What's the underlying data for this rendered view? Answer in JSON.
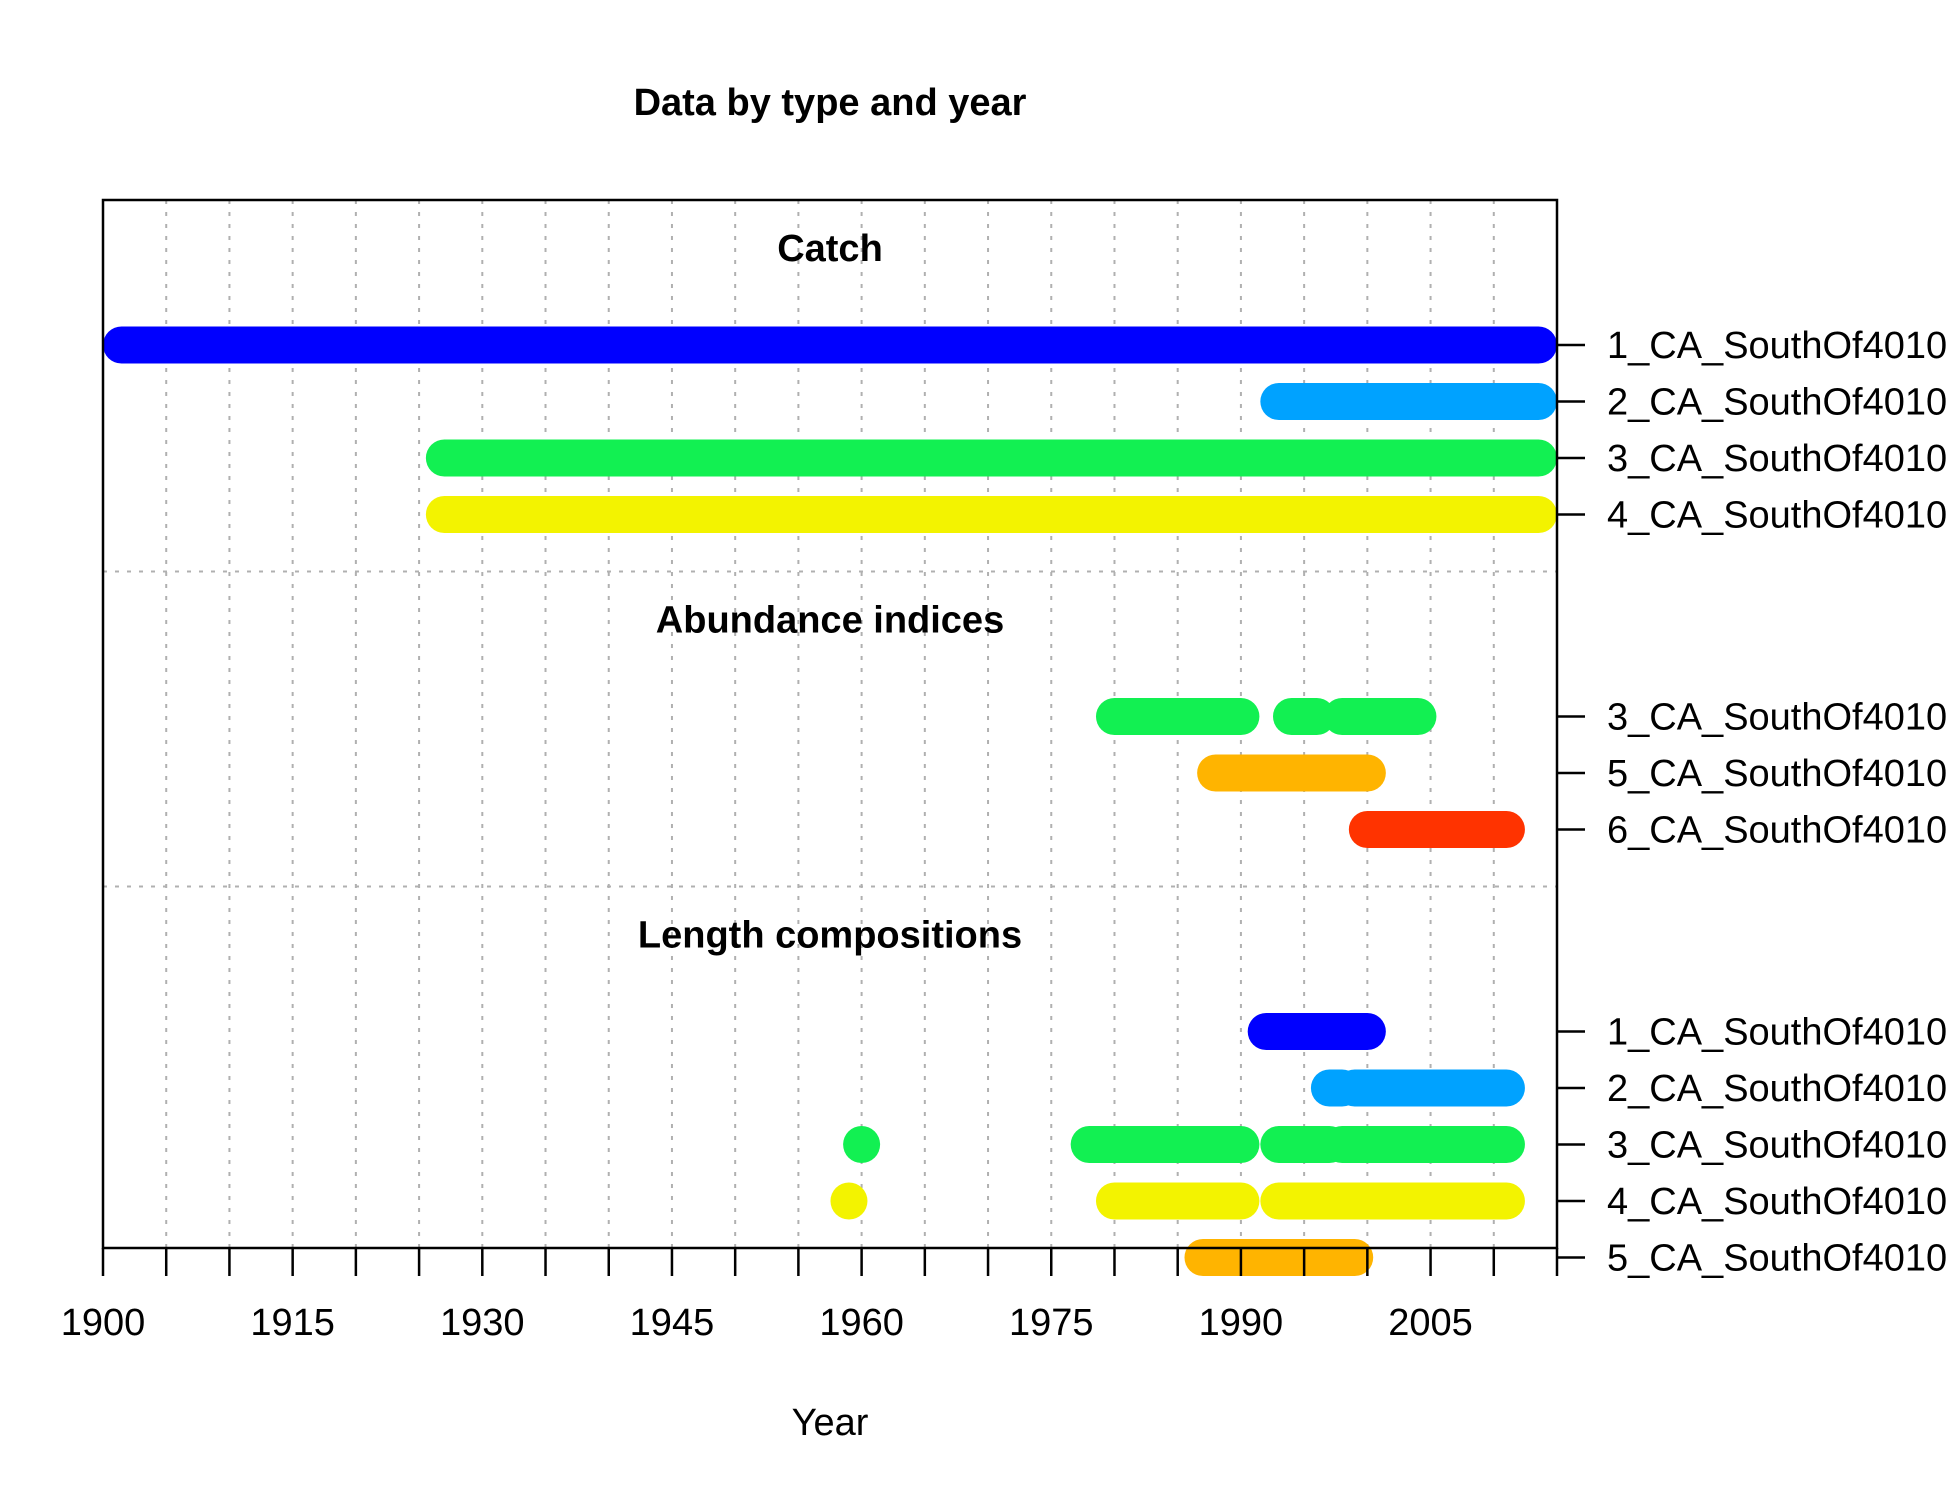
{
  "chart_data": {
    "type": "timeline",
    "title": "Data by type and year",
    "xlabel": "Year",
    "xlim": [
      1900,
      2015
    ],
    "xticks": [
      1900,
      1905,
      1910,
      1915,
      1920,
      1925,
      1930,
      1935,
      1940,
      1945,
      1950,
      1955,
      1960,
      1965,
      1970,
      1975,
      1980,
      1985,
      1990,
      1995,
      2000,
      2005,
      2010,
      2015
    ],
    "xtick_labels": [
      {
        "value": 1900,
        "label": "1900"
      },
      {
        "value": 1915,
        "label": "1915"
      },
      {
        "value": 1930,
        "label": "1930"
      },
      {
        "value": 1945,
        "label": "1945"
      },
      {
        "value": 1960,
        "label": "1960"
      },
      {
        "value": 1975,
        "label": "1975"
      },
      {
        "value": 1990,
        "label": "1990"
      },
      {
        "value": 2005,
        "label": "2005"
      }
    ],
    "grid": true,
    "sections": [
      {
        "title": "Catch",
        "rows": [
          {
            "label": "1_CA_SouthOf4010",
            "color": "#0000FF",
            "segments": [
              [
                1900,
                2015
              ]
            ]
          },
          {
            "label": "2_CA_SouthOf4010",
            "color": "#00A2FF",
            "segments": [
              [
                1993,
                2015
              ]
            ]
          },
          {
            "label": "3_CA_SouthOf4010",
            "color": "#12F052",
            "segments": [
              [
                1927,
                2015
              ]
            ]
          },
          {
            "label": "4_CA_SouthOf4010",
            "color": "#F3F300",
            "segments": [
              [
                1927,
                2015
              ]
            ]
          }
        ]
      },
      {
        "title": "Abundance indices",
        "rows": [
          {
            "label": "3_CA_SouthOf4010",
            "color": "#12F052",
            "segments": [
              [
                1980,
                1990
              ],
              [
                1994,
                1996
              ],
              [
                1998,
                2004
              ]
            ]
          },
          {
            "label": "5_CA_SouthOf4010",
            "color": "#FFB400",
            "segments": [
              [
                1988,
                2000
              ]
            ]
          },
          {
            "label": "6_CA_SouthOf4010",
            "color": "#FF3300",
            "segments": [
              [
                2000,
                2011
              ]
            ]
          }
        ]
      },
      {
        "title": "Length compositions",
        "rows": [
          {
            "label": "1_CA_SouthOf4010",
            "color": "#0000FF",
            "segments": [
              [
                1992,
                2000
              ]
            ]
          },
          {
            "label": "2_CA_SouthOf4010",
            "color": "#00A2FF",
            "segments": [
              [
                1997,
                1998
              ],
              [
                1999,
                2011
              ]
            ]
          },
          {
            "label": "3_CA_SouthOf4010",
            "color": "#12F052",
            "segments": [
              [
                1960,
                1960
              ],
              [
                1978,
                1990
              ],
              [
                1993,
                1997
              ],
              [
                1998,
                2011
              ]
            ]
          },
          {
            "label": "4_CA_SouthOf4010",
            "color": "#F3F300",
            "segments": [
              [
                1959,
                1959
              ],
              [
                1980,
                1990
              ],
              [
                1993,
                2011
              ]
            ]
          },
          {
            "label": "5_CA_SouthOf4010",
            "color": "#FFB400",
            "segments": [
              [
                1987,
                1999
              ]
            ]
          }
        ]
      }
    ]
  }
}
